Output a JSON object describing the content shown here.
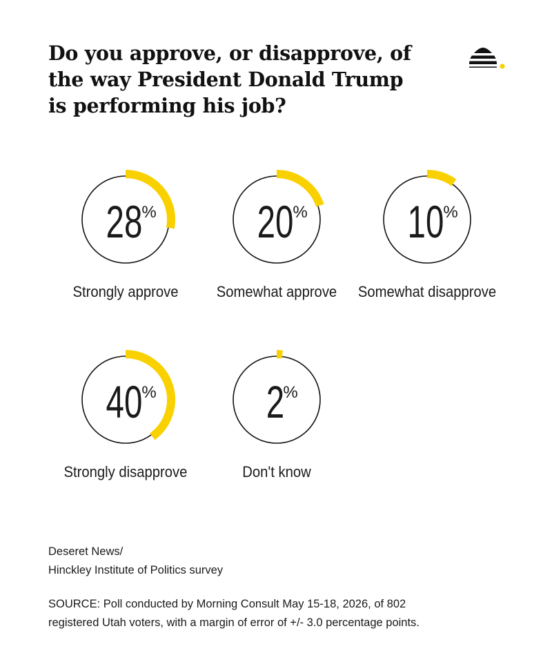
{
  "title": "Do you approve, or disapprove, of the way President Donald Trump is performing his job?",
  "logo_icon": "beehive-icon",
  "colors": {
    "accent": "#f9d100",
    "ring": "#111111",
    "text": "#1a1a1a"
  },
  "chart_data": {
    "type": "pie",
    "unit": "%",
    "categories": [
      "Strongly approve",
      "Somewhat approve",
      "Somewhat disapprove",
      "Strongly disapprove",
      "Don't know"
    ],
    "values": [
      28,
      20,
      10,
      40,
      2
    ]
  },
  "credit": {
    "line1": "Deseret News/",
    "line2": "Hinckley Institute of Politics survey"
  },
  "source_line1": "SOURCE: Poll conducted by Morning Consult May 15-18, 2026, of 802",
  "source_line2": "registered Utah voters, with a margin of error of +/- 3.0 percentage points."
}
